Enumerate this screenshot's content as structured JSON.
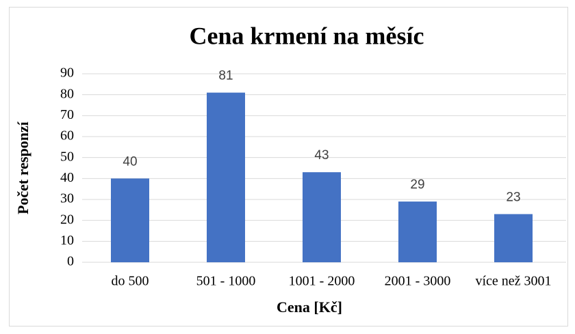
{
  "chart_data": {
    "type": "bar",
    "title": "Cena krmení na měsíc",
    "x_label": "Cena [Kč]",
    "y_label": "Počet responzí",
    "categories": [
      "do 500",
      "501 - 1000",
      "1001 - 2000",
      "2001 - 3000",
      "více než 3001"
    ],
    "values": [
      40,
      81,
      43,
      29,
      23
    ],
    "color": "#4472c4",
    "ylim": [
      0,
      90
    ],
    "yticks": [
      0,
      10,
      20,
      30,
      40,
      50,
      60,
      70,
      80,
      90
    ],
    "grid": true,
    "data_labels": true
  }
}
